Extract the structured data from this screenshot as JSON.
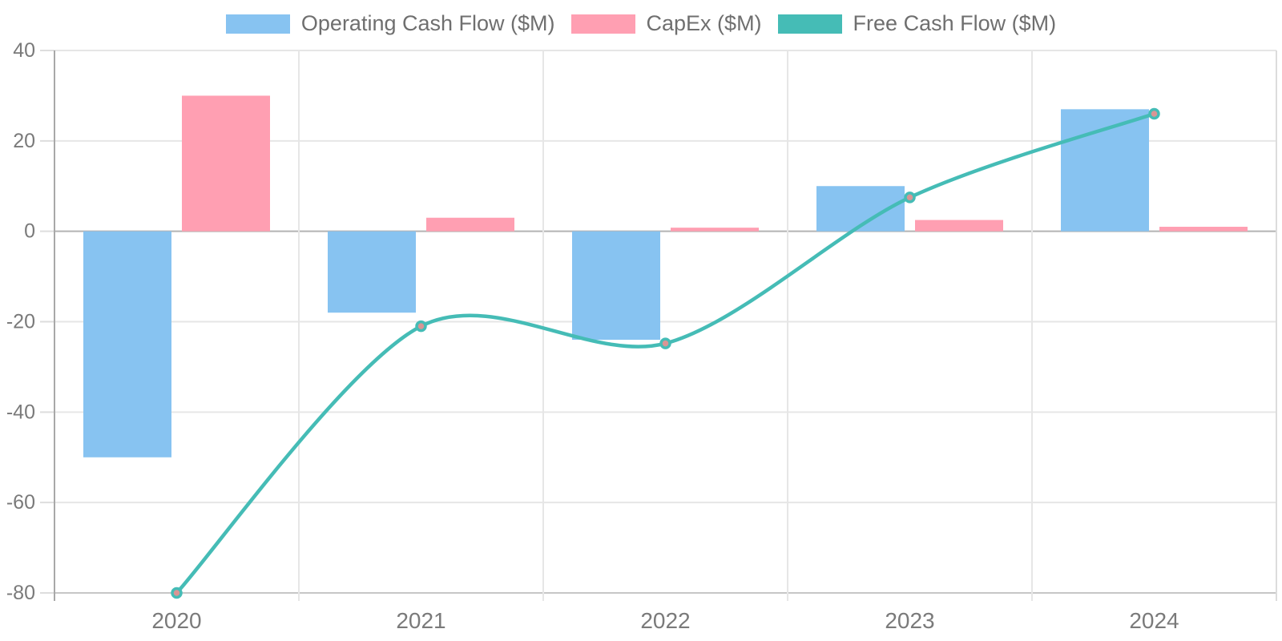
{
  "chart_data": {
    "type": "bar",
    "subtype": "bar-line-combo",
    "title": "",
    "xlabel": "",
    "ylabel": "",
    "categories": [
      "2020",
      "2021",
      "2022",
      "2023",
      "2024"
    ],
    "series": [
      {
        "name": "Operating Cash Flow ($M)",
        "kind": "bar",
        "color": "#87C3F1",
        "values": [
          -50,
          -18,
          -24,
          10,
          27
        ]
      },
      {
        "name": "CapEx ($M)",
        "kind": "bar",
        "color": "#FF9FB2",
        "values": [
          30,
          3,
          0.8,
          2.5,
          1
        ]
      },
      {
        "name": "Free Cash Flow ($M)",
        "kind": "line",
        "color": "#45BCB6",
        "marker_fill": "#D99595",
        "values": [
          -80,
          -21,
          -24.8,
          7.5,
          26
        ]
      }
    ],
    "ylim": [
      -80,
      40
    ],
    "y_ticks": [
      40,
      20,
      0,
      -20,
      -40,
      -60,
      -80
    ],
    "grid": true,
    "legend_position": "top"
  },
  "style_colors": {
    "grid_light": "#E6E6E6",
    "zero_line": "#B3B3B3",
    "y_axis_line": "#A8A8A8",
    "bottom_border": "#C6C6C6",
    "right_border": "#DCDCDC",
    "tick_mark": "#DDDDDD",
    "tick_text": "#7A7A7A"
  }
}
